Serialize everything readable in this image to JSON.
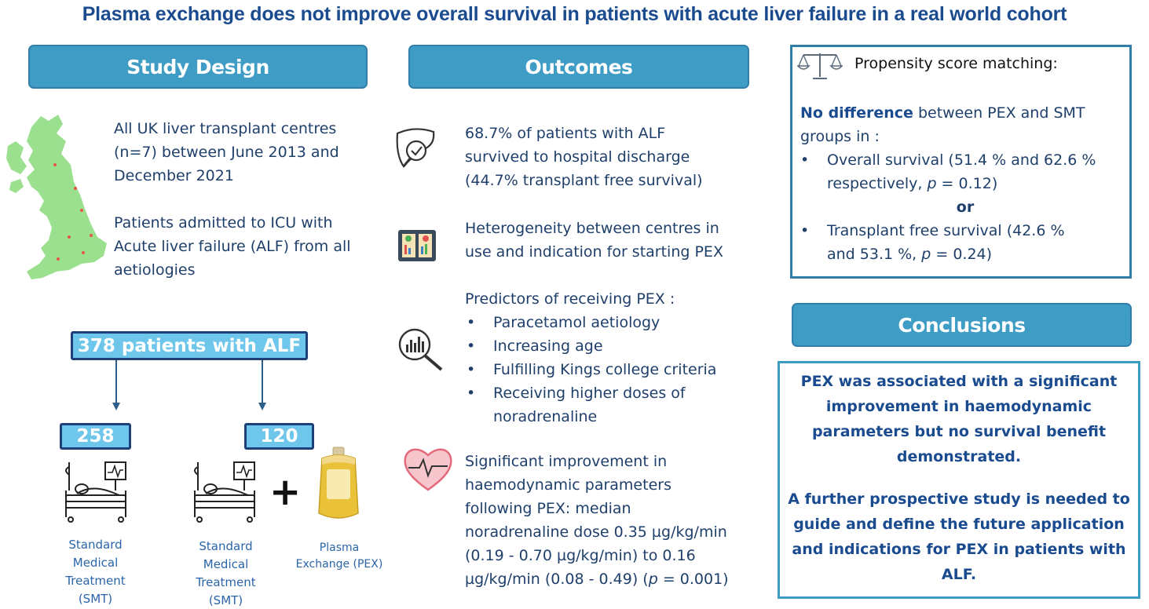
{
  "title": "Plasma exchange does not improve overall survival in patients with acute liver failure in a real world cohort",
  "study_design": {
    "header": "Study Design",
    "centres_text": [
      "All UK liver transplant centres",
      "(n=7) between  June 2013 and",
      "December 2021"
    ],
    "patients_text": [
      "Patients admitted to ICU with",
      "Acute liver failure (ALF) from all",
      "aetiologies"
    ],
    "total_label": "378 patients with ALF",
    "smt_count": "258",
    "pex_count": "120",
    "plus_sign": "+",
    "smt_caption_left": [
      "Standard",
      "Medical",
      "Treatment",
      "(SMT)"
    ],
    "smt_caption_right": [
      "Standard",
      "Medical",
      "Treatment",
      "(SMT)"
    ],
    "pex_caption": [
      "Plasma",
      "Exchange (PEX)"
    ]
  },
  "outcomes": {
    "header": "Outcomes",
    "survival_text": [
      "68.7% of patients with ALF",
      "survived to hospital discharge",
      "(44.7% transplant free survival)"
    ],
    "heterogeneity_text": [
      "Heterogeneity between centres in",
      "use and indication for starting PEX"
    ],
    "predictors_heading": "Predictors of receiving PEX :",
    "predictors": [
      "Paracetamol aetiology",
      "Increasing age",
      "Fulfilling Kings college criteria",
      "Receiving higher doses of"
    ],
    "predictors_cont": "noradrenaline",
    "haemo_text": [
      "Significant improvement in",
      "haemodynamic parameters",
      "following PEX: median",
      "noradrenaline dose 0.35 µg/kg/min",
      "(0.19 - 0.70 µg/kg/min) to 0.16"
    ],
    "haemo_last_prefix": "µg/kg/min (0.08 - 0.49) (",
    "haemo_last_p": "p",
    "haemo_last_suffix": " = 0.001)"
  },
  "psm": {
    "heading": "Propensity score matching:",
    "nodiff_bold": "No difference",
    "nodiff_rest": " between PEX and SMT",
    "nodiff_line2": "groups in :",
    "item1_line1": "Overall survival (51.4 % and 62.6 %",
    "item1_line2_prefix": "respectively, ",
    "item1_p": "p",
    "item1_line2_suffix": " = 0.12)",
    "or_label": "or",
    "item2_line1": "Transplant free survival (42.6 %",
    "item2_line2_prefix": "and 53.1 %, ",
    "item2_p": "p",
    "item2_line2_suffix": " = 0.24)"
  },
  "conclusions": {
    "header": "Conclusions",
    "para1": [
      "PEX was associated with a significant",
      "improvement in haemodynamic",
      "parameters but no survival benefit",
      "demonstrated."
    ],
    "para2": [
      "A further prospective study is needed to",
      "guide and define the future application",
      "and indications for PEX in patients with",
      "ALF."
    ]
  },
  "colors": {
    "title": "#1a4b8f",
    "header_fill": "#3f9cc5",
    "pill_fill": "#6ec6ea",
    "uk_map": "#9be08f",
    "heart": "#e36a7a"
  },
  "icons": [
    "uk-map-icon",
    "liver-check-icon",
    "centres-comparison-icon",
    "magnifier-chart-icon",
    "heart-pulse-icon",
    "hospital-bed-icon",
    "plasma-bag-icon",
    "scales-icon"
  ]
}
